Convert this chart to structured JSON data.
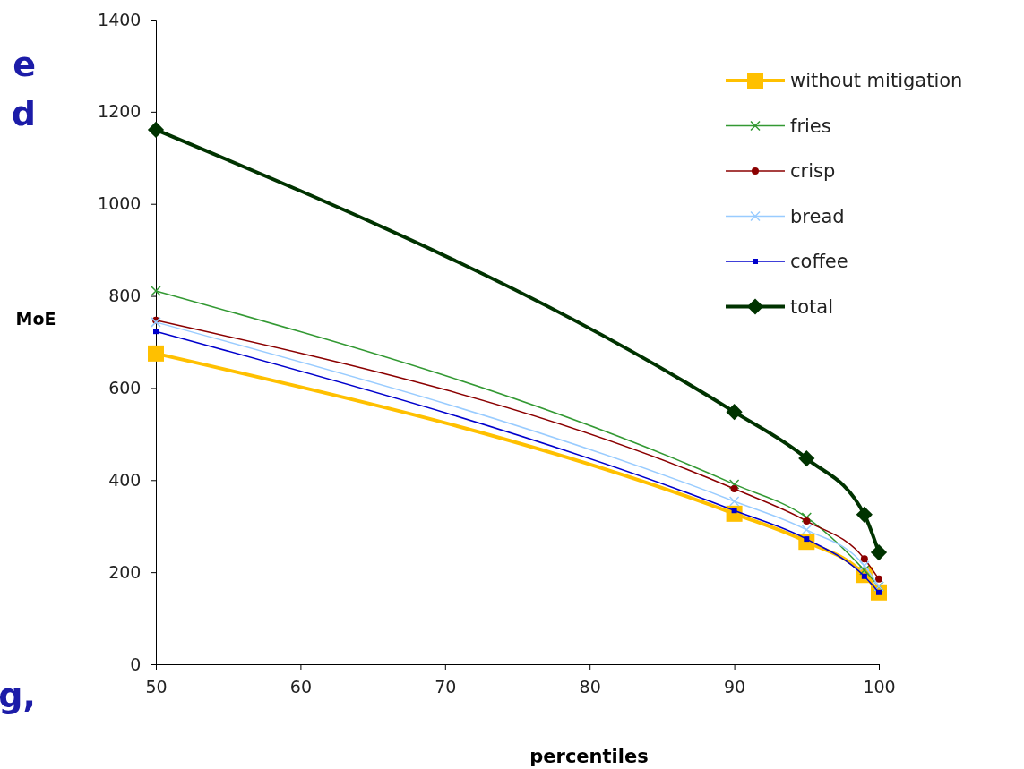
{
  "chart_data": {
    "type": "line",
    "xlabel": "percentiles",
    "ylabel": "MoE",
    "x": [
      50,
      90,
      95,
      99,
      100
    ],
    "xlim": [
      50,
      100
    ],
    "xticks": [
      50,
      60,
      70,
      80,
      90,
      100
    ],
    "ylim": [
      0,
      1400
    ],
    "yticks": [
      0,
      200,
      400,
      600,
      800,
      1000,
      1200,
      1400
    ],
    "grid": false,
    "legend": "top right",
    "series": [
      {
        "name": "without mitigation",
        "color": "#ffc000",
        "marker": "square",
        "values": [
          675,
          327,
          266,
          194,
          156
        ]
      },
      {
        "name": "fries",
        "color": "#339933",
        "marker": "cross",
        "values": [
          811,
          391,
          319,
          204,
          169
        ]
      },
      {
        "name": "crisp",
        "color": "#8b0000",
        "marker": "circle",
        "values": [
          747,
          381,
          311,
          229,
          185
        ]
      },
      {
        "name": "bread",
        "color": "#99ccff",
        "marker": "cross",
        "values": [
          743,
          354,
          292,
          214,
          169
        ]
      },
      {
        "name": "coffee",
        "color": "#0000cc",
        "marker": "square",
        "values": [
          723,
          334,
          272,
          191,
          156
        ]
      },
      {
        "name": "total",
        "color": "#003300",
        "marker": "diamond",
        "values": [
          1161,
          548,
          447,
          325,
          243
        ]
      }
    ],
    "annotations": [
      "e",
      "d",
      "g,"
    ]
  }
}
